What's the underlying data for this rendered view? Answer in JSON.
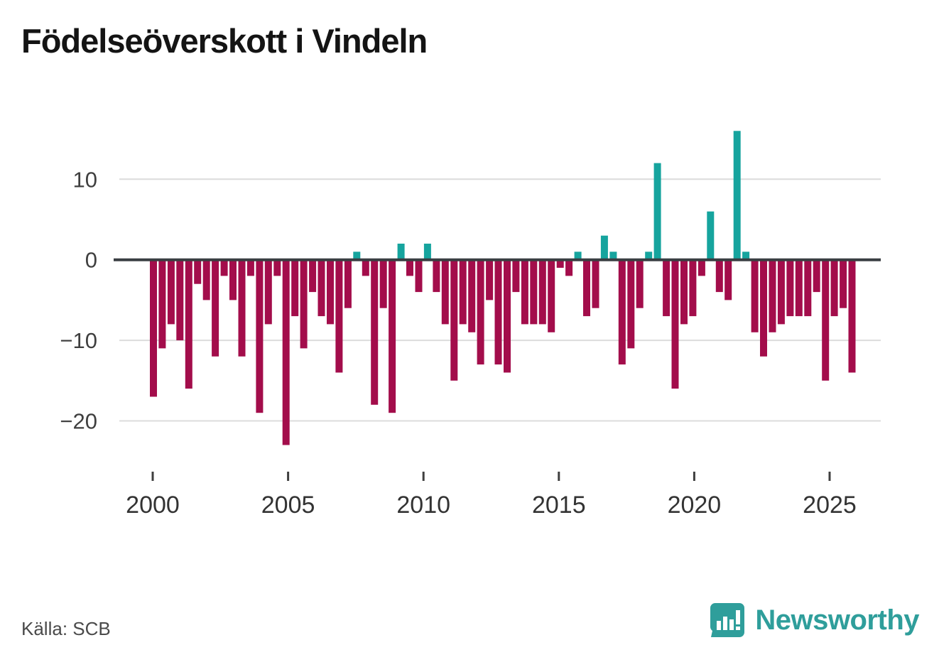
{
  "title": "Födelseöverskott i Vindeln",
  "source": "Källa: SCB",
  "brand": {
    "name": "Newsworthy",
    "color": "#2f9e9b",
    "icon": "bar-chart-speech-bubble"
  },
  "chart_data": {
    "type": "bar",
    "title": "Födelseöverskott i Vindeln",
    "xlabel": "",
    "ylabel": "",
    "y_ticks": [
      10,
      0,
      -10,
      -20
    ],
    "y_tick_labels": [
      "10",
      "0",
      "−10",
      "−20"
    ],
    "ylim": [
      -24.5,
      17
    ],
    "x_tick_labels": [
      "2000",
      "2005",
      "2010",
      "2015",
      "2020",
      "2025"
    ],
    "start_year": 2000,
    "periods_per_year": 3,
    "grid": true,
    "legend": false,
    "colors": {
      "positive": "#16a49e",
      "negative": "#a30d4b",
      "axis": "#3a3e42",
      "gridline": "#dcdcdc",
      "tick_text": "#3f3f3f"
    },
    "values": [
      -17,
      -11,
      -8,
      -10,
      -16,
      -3,
      -5,
      -12,
      -2,
      -5,
      -12,
      -2,
      -19,
      -8,
      -2,
      -23,
      -7,
      -11,
      -4,
      -7,
      -8,
      -14,
      -6,
      1,
      -2,
      -18,
      -6,
      -19,
      2,
      -2,
      -4,
      2,
      -4,
      -8,
      -15,
      -8,
      -9,
      -13,
      -5,
      -13,
      -14,
      -4,
      -8,
      -8,
      -8,
      -9,
      -1,
      -2,
      1,
      -7,
      -6,
      3,
      1,
      -13,
      -11,
      -6,
      1,
      12,
      -7,
      -16,
      -8,
      -7,
      -2,
      6,
      -4,
      -5,
      16,
      1,
      -9,
      -12,
      -9,
      -8,
      -7,
      -7,
      -7,
      -4,
      -15,
      -7,
      -6,
      -14
    ]
  },
  "layout_note": "values are one bar per 4-month period from 2000 onward; positive bars teal, negative maroon"
}
